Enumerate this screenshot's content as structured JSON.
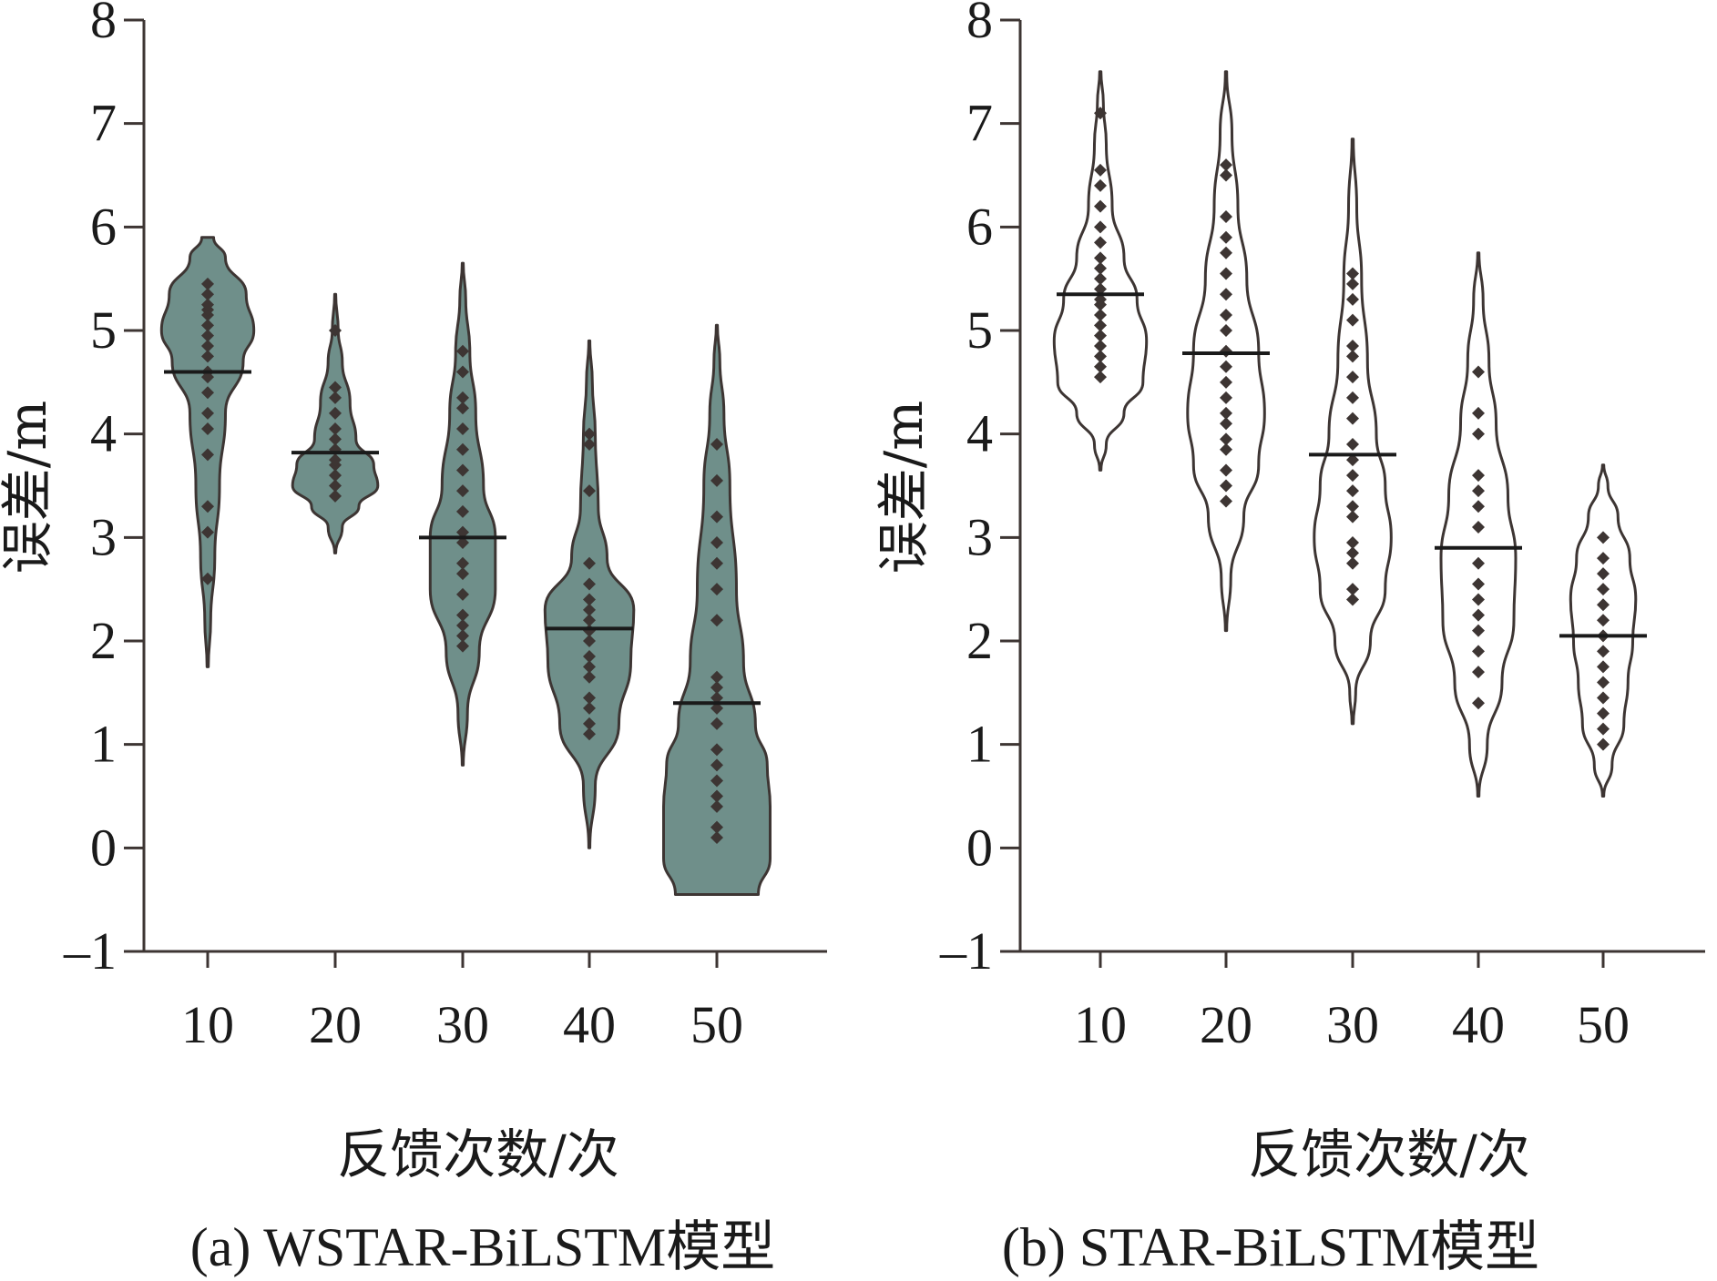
{
  "chart_data": [
    {
      "type": "violin",
      "panel_id": "a",
      "caption": "(a) WSTAR-BiLSTM模型",
      "xlabel": "反馈次数/次",
      "ylabel": "误差/m",
      "ylim": [
        -1,
        8
      ],
      "y_ticks": [
        "-1",
        "0",
        "1",
        "2",
        "3",
        "4",
        "5",
        "6",
        "7",
        "8"
      ],
      "categories": [
        "10",
        "20",
        "30",
        "40",
        "50"
      ],
      "filled": true,
      "fill_color": "#6f8f8a",
      "edge_color": "#3d3533",
      "point_color": "#3d3533",
      "medians": [
        4.6,
        3.82,
        3.0,
        2.12,
        1.4
      ],
      "violins": [
        {
          "category": "10",
          "profile": [
            [
              1.75,
              0.01
            ],
            [
              2.2,
              0.05
            ],
            [
              2.8,
              0.12
            ],
            [
              3.5,
              0.2
            ],
            [
              4.2,
              0.3
            ],
            [
              4.7,
              0.6
            ],
            [
              5.0,
              0.78
            ],
            [
              5.35,
              0.65
            ],
            [
              5.7,
              0.3
            ],
            [
              5.9,
              0.1
            ]
          ],
          "points": [
            2.6,
            3.05,
            3.3,
            3.8,
            4.05,
            4.2,
            4.4,
            4.55,
            4.6,
            4.75,
            4.85,
            4.95,
            5.05,
            5.15,
            5.2,
            5.25,
            5.35,
            5.45
          ]
        },
        {
          "category": "20",
          "profile": [
            [
              2.85,
              0.01
            ],
            [
              3.1,
              0.12
            ],
            [
              3.3,
              0.4
            ],
            [
              3.5,
              0.72
            ],
            [
              3.7,
              0.65
            ],
            [
              3.95,
              0.35
            ],
            [
              4.3,
              0.25
            ],
            [
              4.7,
              0.12
            ],
            [
              5.0,
              0.05
            ],
            [
              5.35,
              0.01
            ]
          ],
          "points": [
            3.4,
            3.5,
            3.6,
            3.7,
            3.75,
            3.85,
            3.95,
            4.05,
            4.2,
            4.35,
            4.45,
            5.0
          ]
        },
        {
          "category": "30",
          "profile": [
            [
              0.8,
              0.01
            ],
            [
              1.3,
              0.08
            ],
            [
              1.9,
              0.28
            ],
            [
              2.5,
              0.55
            ],
            [
              3.0,
              0.55
            ],
            [
              3.5,
              0.35
            ],
            [
              4.2,
              0.22
            ],
            [
              4.8,
              0.12
            ],
            [
              5.3,
              0.05
            ],
            [
              5.65,
              0.01
            ]
          ],
          "points": [
            1.95,
            2.05,
            2.15,
            2.25,
            2.45,
            2.65,
            2.75,
            2.95,
            3.05,
            3.25,
            3.45,
            3.65,
            3.85,
            4.05,
            4.25,
            4.35,
            4.6,
            4.8
          ]
        },
        {
          "category": "40",
          "profile": [
            [
              0.0,
              0.01
            ],
            [
              0.6,
              0.1
            ],
            [
              1.2,
              0.5
            ],
            [
              1.8,
              0.7
            ],
            [
              2.3,
              0.75
            ],
            [
              2.8,
              0.3
            ],
            [
              3.3,
              0.15
            ],
            [
              4.0,
              0.1
            ],
            [
              4.5,
              0.05
            ],
            [
              4.9,
              0.01
            ]
          ],
          "points": [
            1.1,
            1.2,
            1.35,
            1.45,
            1.65,
            1.75,
            1.85,
            2.0,
            2.1,
            2.2,
            2.3,
            2.4,
            2.55,
            2.75,
            3.45,
            3.9,
            4.0
          ]
        },
        {
          "category": "50",
          "profile": [
            [
              -0.45,
              0.7
            ],
            [
              -0.1,
              0.9
            ],
            [
              0.4,
              0.9
            ],
            [
              0.8,
              0.85
            ],
            [
              1.2,
              0.65
            ],
            [
              1.8,
              0.45
            ],
            [
              2.5,
              0.33
            ],
            [
              3.5,
              0.22
            ],
            [
              4.2,
              0.12
            ],
            [
              4.7,
              0.05
            ],
            [
              5.05,
              0.01
            ]
          ],
          "points": [
            0.1,
            0.2,
            0.4,
            0.5,
            0.65,
            0.8,
            0.95,
            1.2,
            1.35,
            1.45,
            1.55,
            1.65,
            2.2,
            2.5,
            2.75,
            2.95,
            3.2,
            3.55,
            3.9
          ]
        }
      ]
    },
    {
      "type": "violin",
      "panel_id": "b",
      "caption": "(b) STAR-BiLSTM模型",
      "xlabel": "反馈次数/次",
      "ylabel": "误差/m",
      "ylim": [
        -1,
        8
      ],
      "y_ticks": [
        "-1",
        "0",
        "1",
        "2",
        "3",
        "4",
        "5",
        "6",
        "7",
        "8"
      ],
      "categories": [
        "10",
        "20",
        "30",
        "40",
        "50"
      ],
      "filled": false,
      "fill_color": "#ffffff",
      "edge_color": "#3d3533",
      "point_color": "#3d3533",
      "medians": [
        5.35,
        4.78,
        3.8,
        2.9,
        2.05
      ],
      "violins": [
        {
          "category": "10",
          "profile": [
            [
              3.65,
              0.01
            ],
            [
              3.9,
              0.1
            ],
            [
              4.2,
              0.4
            ],
            [
              4.5,
              0.72
            ],
            [
              4.9,
              0.78
            ],
            [
              5.3,
              0.62
            ],
            [
              5.7,
              0.4
            ],
            [
              6.2,
              0.2
            ],
            [
              6.8,
              0.1
            ],
            [
              7.2,
              0.05
            ],
            [
              7.5,
              0.01
            ]
          ],
          "points": [
            4.55,
            4.65,
            4.75,
            4.85,
            4.95,
            5.05,
            5.15,
            5.25,
            5.3,
            5.4,
            5.5,
            5.6,
            5.7,
            5.85,
            6.0,
            6.2,
            6.4,
            6.55,
            7.1
          ]
        },
        {
          "category": "20",
          "profile": [
            [
              2.1,
              0.01
            ],
            [
              2.6,
              0.08
            ],
            [
              3.2,
              0.3
            ],
            [
              3.7,
              0.55
            ],
            [
              4.2,
              0.65
            ],
            [
              4.8,
              0.55
            ],
            [
              5.5,
              0.35
            ],
            [
              6.2,
              0.2
            ],
            [
              6.9,
              0.1
            ],
            [
              7.5,
              0.01
            ]
          ],
          "points": [
            3.35,
            3.5,
            3.65,
            3.85,
            3.95,
            4.1,
            4.2,
            4.35,
            4.5,
            4.65,
            4.8,
            5.0,
            5.15,
            5.35,
            5.55,
            5.75,
            5.9,
            6.1,
            6.5,
            6.6
          ]
        },
        {
          "category": "30",
          "profile": [
            [
              1.2,
              0.01
            ],
            [
              1.5,
              0.05
            ],
            [
              2.0,
              0.3
            ],
            [
              2.5,
              0.55
            ],
            [
              3.0,
              0.65
            ],
            [
              3.5,
              0.55
            ],
            [
              4.0,
              0.4
            ],
            [
              4.7,
              0.25
            ],
            [
              5.5,
              0.15
            ],
            [
              6.2,
              0.07
            ],
            [
              6.85,
              0.01
            ]
          ],
          "points": [
            2.4,
            2.5,
            2.75,
            2.85,
            2.95,
            3.2,
            3.3,
            3.45,
            3.6,
            3.75,
            3.9,
            4.15,
            4.35,
            4.55,
            4.75,
            4.85,
            5.1,
            5.3,
            5.45,
            5.55
          ]
        },
        {
          "category": "40",
          "profile": [
            [
              0.5,
              0.01
            ],
            [
              1.0,
              0.15
            ],
            [
              1.6,
              0.4
            ],
            [
              2.2,
              0.6
            ],
            [
              2.8,
              0.63
            ],
            [
              3.4,
              0.5
            ],
            [
              4.1,
              0.3
            ],
            [
              4.7,
              0.18
            ],
            [
              5.3,
              0.08
            ],
            [
              5.75,
              0.01
            ]
          ],
          "points": [
            1.4,
            1.7,
            1.9,
            2.1,
            2.25,
            2.4,
            2.55,
            2.75,
            3.1,
            3.3,
            3.45,
            3.6,
            4.0,
            4.2,
            4.6
          ]
        },
        {
          "category": "50",
          "profile": [
            [
              0.5,
              0.01
            ],
            [
              0.8,
              0.15
            ],
            [
              1.2,
              0.35
            ],
            [
              1.6,
              0.42
            ],
            [
              2.0,
              0.5
            ],
            [
              2.4,
              0.55
            ],
            [
              2.8,
              0.45
            ],
            [
              3.2,
              0.25
            ],
            [
              3.5,
              0.08
            ],
            [
              3.7,
              0.01
            ]
          ],
          "points": [
            1.0,
            1.15,
            1.3,
            1.45,
            1.6,
            1.75,
            1.9,
            2.05,
            2.2,
            2.35,
            2.5,
            2.65,
            2.8,
            3.0
          ]
        }
      ]
    }
  ]
}
